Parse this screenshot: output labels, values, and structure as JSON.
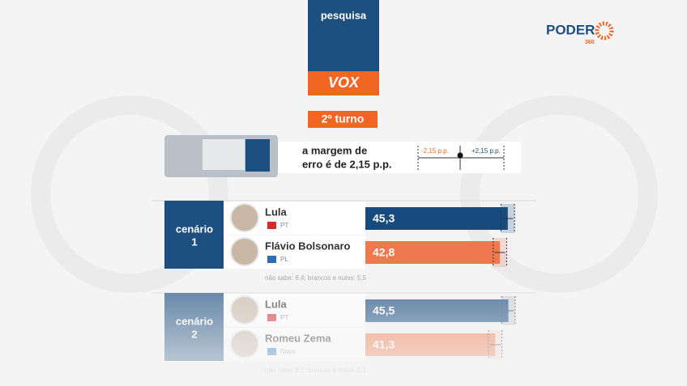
{
  "header": {
    "survey": "pesquisa",
    "pollster": "VOX",
    "brand": "PODER",
    "brand_sub": "360",
    "round": "2º turno",
    "margin_text_1": "a margem de",
    "margin_text_2": "erro é de 2,15 p.p.",
    "minus_label": "-2,15 p.p.",
    "plus_label": "+2,15 p.p."
  },
  "chart_data": [
    {
      "type": "bar",
      "title": "cenário",
      "number": "1",
      "categories": [
        "Lula",
        "Flávio Bolsonaro"
      ],
      "parties": [
        "PT",
        "PL"
      ],
      "colors": [
        "#174a7e",
        "#f0784e"
      ],
      "values": [
        45.3,
        42.8
      ],
      "value_labels": [
        "45,3",
        "42,8"
      ],
      "error": 2.15,
      "xlim": [
        0,
        50
      ],
      "note": "não sabe: 6,4; brancos e nulos: 5,5"
    },
    {
      "type": "bar",
      "title": "cenário",
      "number": "2",
      "categories": [
        "Lula",
        "Romeu Zema"
      ],
      "parties": [
        "PT",
        "Novo"
      ],
      "colors": [
        "#174a7e",
        "#f0784e"
      ],
      "values": [
        45.5,
        41.3
      ],
      "value_labels": [
        "45,5",
        "41,3"
      ],
      "error": 2.15,
      "xlim": [
        0,
        50
      ],
      "note": "não sabe: 8,1; brancos e nulos: 5,1"
    }
  ]
}
